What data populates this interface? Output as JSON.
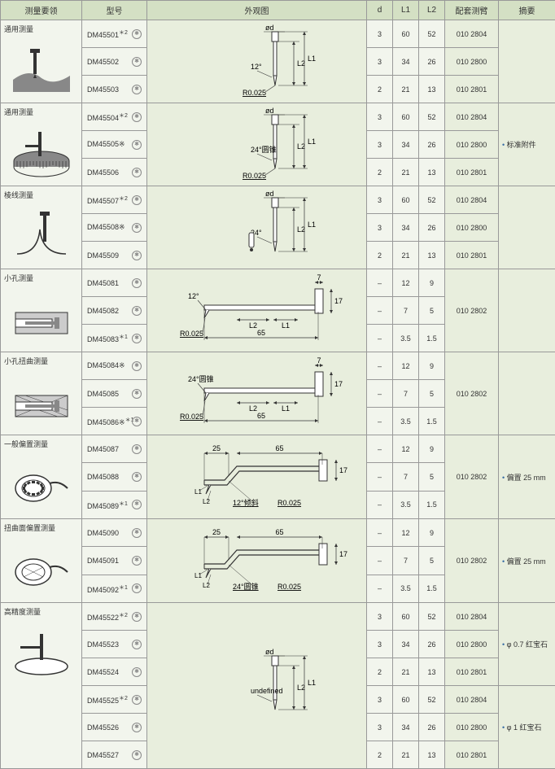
{
  "headers": {
    "c1": "测量要领",
    "c2": "型号",
    "c3": "外观图",
    "c4": "d",
    "c5": "L1",
    "c6": "L2",
    "c7": "配套测臂",
    "c8": "摘要"
  },
  "colwidths": {
    "c1": 100,
    "c2": 80,
    "c3": 270,
    "c4": 32,
    "c5": 32,
    "c6": 32,
    "c7": 66,
    "c8": 70
  },
  "groups": [
    {
      "cat": "通用测量",
      "icon": "flat",
      "app": "tip1",
      "sum": "",
      "rows": [
        {
          "m": "DM45501",
          "sup": "＊2",
          "d": "3",
          "l1": "60",
          "l2": "52",
          "arm": "010 2804"
        },
        {
          "m": "DM45502",
          "d": "3",
          "l1": "34",
          "l2": "26",
          "arm": "010 2800"
        },
        {
          "m": "DM45503",
          "d": "2",
          "l1": "21",
          "l2": "13",
          "arm": "010 2801"
        }
      ]
    },
    {
      "cat": "通用测量",
      "icon": "cyl",
      "app": "tip2",
      "sum": "标准附件",
      "rows": [
        {
          "m": "DM45504",
          "sup": "＊2",
          "d": "3",
          "l1": "60",
          "l2": "52",
          "arm": "010 2804"
        },
        {
          "m": "DM45505※",
          "d": "3",
          "l1": "34",
          "l2": "26",
          "arm": "010 2800"
        },
        {
          "m": "DM45506",
          "d": "2",
          "l1": "21",
          "l2": "13",
          "arm": "010 2801"
        }
      ]
    },
    {
      "cat": "棱线测量",
      "icon": "edge",
      "app": "tip3",
      "sum": "",
      "rows": [
        {
          "m": "DM45507",
          "sup": "＊2",
          "d": "3",
          "l1": "60",
          "l2": "52",
          "arm": "010 2804"
        },
        {
          "m": "DM45508※",
          "d": "3",
          "l1": "34",
          "l2": "26",
          "arm": "010 2800"
        },
        {
          "m": "DM45509",
          "d": "2",
          "l1": "21",
          "l2": "13",
          "arm": "010 2801"
        }
      ]
    },
    {
      "cat": "小孔测量",
      "icon": "hole",
      "app": "arm1",
      "sum": "",
      "armspan": true,
      "arm": "010 2802",
      "rows": [
        {
          "m": "DM45081",
          "d": "–",
          "l1": "12",
          "l2": "9"
        },
        {
          "m": "DM45082",
          "d": "–",
          "l1": "7",
          "l2": "5"
        },
        {
          "m": "DM45083",
          "sup": "＊1",
          "d": "–",
          "l1": "3.5",
          "l2": "1.5"
        }
      ]
    },
    {
      "cat": "小孔扭曲测量",
      "icon": "holetwist",
      "app": "arm2",
      "sum": "",
      "armspan": true,
      "arm": "010 2802",
      "rows": [
        {
          "m": "DM45084※",
          "d": "–",
          "l1": "12",
          "l2": "9"
        },
        {
          "m": "DM45085",
          "d": "–",
          "l1": "7",
          "l2": "5"
        },
        {
          "m": "DM45086※",
          "sup": "＊1",
          "d": "–",
          "l1": "3.5",
          "l2": "1.5"
        }
      ]
    },
    {
      "cat": "一般偏置测量",
      "icon": "off1",
      "app": "bent1",
      "sum": "偏置 25 mm",
      "armspan": true,
      "arm": "010 2802",
      "rows": [
        {
          "m": "DM45087",
          "d": "–",
          "l1": "12",
          "l2": "9"
        },
        {
          "m": "DM45088",
          "d": "–",
          "l1": "7",
          "l2": "5"
        },
        {
          "m": "DM45089",
          "sup": "＊1",
          "d": "–",
          "l1": "3.5",
          "l2": "1.5"
        }
      ]
    },
    {
      "cat": "扭曲面偏置测量",
      "icon": "off2",
      "app": "bent2",
      "sum": "偏置 25 mm",
      "armspan": true,
      "arm": "010 2802",
      "rows": [
        {
          "m": "DM45090",
          "d": "–",
          "l1": "12",
          "l2": "9"
        },
        {
          "m": "DM45091",
          "d": "–",
          "l1": "7",
          "l2": "5"
        },
        {
          "m": "DM45092",
          "sup": "＊1",
          "d": "–",
          "l1": "3.5",
          "l2": "1.5"
        }
      ]
    },
    {
      "cat": "高精度测量",
      "icon": "prec",
      "app": "tip4",
      "sums": [
        "φ 0.7 红宝石",
        "φ 1 红宝石"
      ],
      "rows": [
        {
          "m": "DM45522",
          "sup": "＊2",
          "d": "3",
          "l1": "60",
          "l2": "52",
          "arm": "010 2804"
        },
        {
          "m": "DM45523",
          "d": "3",
          "l1": "34",
          "l2": "26",
          "arm": "010 2800"
        },
        {
          "m": "DM45524",
          "d": "2",
          "l1": "21",
          "l2": "13",
          "arm": "010 2801"
        },
        {
          "m": "DM45525",
          "sup": "＊2",
          "d": "3",
          "l1": "60",
          "l2": "52",
          "arm": "010 2804"
        },
        {
          "m": "DM45526",
          "d": "3",
          "l1": "34",
          "l2": "26",
          "arm": "010 2800"
        },
        {
          "m": "DM45527",
          "d": "2",
          "l1": "21",
          "l2": "13",
          "arm": "010 2801"
        }
      ]
    }
  ],
  "dash": "–",
  "diagrams": {
    "tip1": {
      "angle": "12°",
      "radius": "R0.025",
      "od": "ød",
      "l1": "L1",
      "l2": "L2"
    },
    "tip2": {
      "angle": "24°圆锥",
      "radius": "R0.025",
      "od": "ød",
      "l1": "L1",
      "l2": "L2"
    },
    "tip3": {
      "angle": "24°",
      "od": "ød",
      "l1": "L1",
      "l2": "L2",
      "side": "side"
    },
    "tip4": {
      "od": "ød",
      "l1": "L1",
      "l2": "L2"
    },
    "arm1": {
      "angle": "12°",
      "radius": "R0.025",
      "len": "65",
      "h": "17",
      "w": "7",
      "l1": "L1",
      "l2": "L2"
    },
    "arm2": {
      "angle": "24°圆锥",
      "radius": "R0.025",
      "len": "65",
      "h": "17",
      "w": "7",
      "l1": "L1",
      "l2": "L2"
    },
    "bent1": {
      "angle": "12°倾斜",
      "radius": "R0.025",
      "len": "65",
      "off": "25",
      "h": "17",
      "l1": "L1",
      "l2": "L2"
    },
    "bent2": {
      "angle": "24°圆锥",
      "radius": "R0.025",
      "len": "65",
      "off": "25",
      "h": "17",
      "l1": "L1",
      "l2": "L2"
    }
  },
  "colors": {
    "hdr": "#d4e0c4",
    "cell": "#f2f5ed",
    "alt": "#e8eedd",
    "line": "#333"
  }
}
